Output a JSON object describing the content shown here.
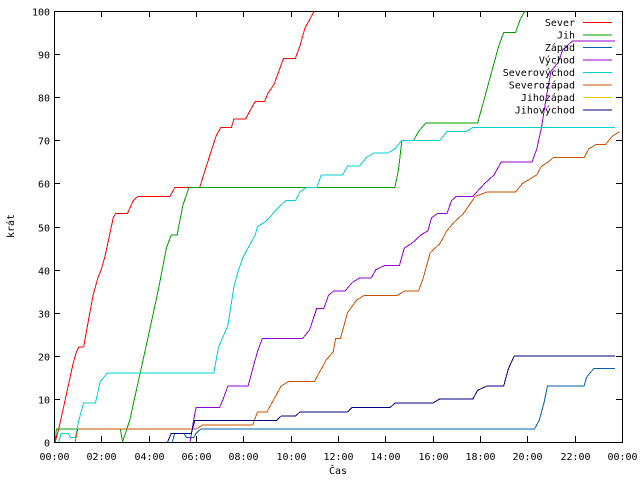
{
  "chart_data": {
    "type": "line",
    "title": "",
    "xlabel": "Čas",
    "ylabel": "krát",
    "xlim": [
      0,
      24
    ],
    "ylim": [
      0,
      100
    ],
    "x_unit": "hours",
    "grid": false,
    "legend_position": "top-right",
    "x_ticks": [
      {
        "value": 0,
        "label": "00:00"
      },
      {
        "value": 2,
        "label": "02:00"
      },
      {
        "value": 4,
        "label": "04:00"
      },
      {
        "value": 6,
        "label": "06:00"
      },
      {
        "value": 8,
        "label": "08:00"
      },
      {
        "value": 10,
        "label": "10:00"
      },
      {
        "value": 12,
        "label": "12:00"
      },
      {
        "value": 14,
        "label": "14:00"
      },
      {
        "value": 16,
        "label": "16:00"
      },
      {
        "value": 18,
        "label": "18:00"
      },
      {
        "value": 20,
        "label": "20:00"
      },
      {
        "value": 22,
        "label": "22:00"
      },
      {
        "value": 24,
        "label": "00:00"
      }
    ],
    "y_ticks": [
      {
        "value": 0,
        "label": "0"
      },
      {
        "value": 10,
        "label": "10"
      },
      {
        "value": 20,
        "label": "20"
      },
      {
        "value": 30,
        "label": "30"
      },
      {
        "value": 40,
        "label": "40"
      },
      {
        "value": 50,
        "label": "50"
      },
      {
        "value": 60,
        "label": "60"
      },
      {
        "value": 70,
        "label": "70"
      },
      {
        "value": 80,
        "label": "80"
      },
      {
        "value": 90,
        "label": "90"
      },
      {
        "value": 100,
        "label": "100"
      }
    ],
    "series": [
      {
        "name": "Sever",
        "color": "#ff0000",
        "points": [
          [
            0.05,
            0
          ],
          [
            0.2,
            3
          ],
          [
            0.4,
            8
          ],
          [
            0.6,
            13
          ],
          [
            0.8,
            18
          ],
          [
            0.95,
            21
          ],
          [
            1.05,
            22
          ],
          [
            1.25,
            22
          ],
          [
            1.45,
            28
          ],
          [
            1.65,
            34
          ],
          [
            1.85,
            38
          ],
          [
            2.0,
            40
          ],
          [
            2.15,
            43
          ],
          [
            2.35,
            48
          ],
          [
            2.5,
            52
          ],
          [
            2.6,
            53
          ],
          [
            3.1,
            53
          ],
          [
            3.35,
            56
          ],
          [
            3.55,
            57
          ],
          [
            4.9,
            57
          ],
          [
            5.1,
            59
          ],
          [
            6.15,
            59
          ],
          [
            6.5,
            65
          ],
          [
            6.85,
            71
          ],
          [
            7.05,
            73
          ],
          [
            7.5,
            73
          ],
          [
            7.6,
            75
          ],
          [
            8.1,
            75
          ],
          [
            8.3,
            77
          ],
          [
            8.5,
            79
          ],
          [
            8.9,
            79
          ],
          [
            9.05,
            81
          ],
          [
            9.3,
            83
          ],
          [
            9.5,
            86
          ],
          [
            9.7,
            89
          ],
          [
            10.2,
            89
          ],
          [
            10.4,
            92
          ],
          [
            10.6,
            96
          ],
          [
            10.8,
            98
          ],
          [
            11.0,
            100
          ]
        ]
      },
      {
        "name": "Jih",
        "color": "#00a000",
        "points": [
          [
            0.05,
            0
          ],
          [
            0.1,
            3
          ],
          [
            2.8,
            3
          ],
          [
            2.9,
            0
          ],
          [
            3.2,
            5
          ],
          [
            3.6,
            15
          ],
          [
            4.0,
            25
          ],
          [
            4.4,
            35
          ],
          [
            4.75,
            45
          ],
          [
            4.95,
            48
          ],
          [
            5.2,
            48
          ],
          [
            5.45,
            55
          ],
          [
            5.7,
            59
          ],
          [
            14.4,
            59
          ],
          [
            14.55,
            63
          ],
          [
            14.7,
            70
          ],
          [
            15.2,
            70
          ],
          [
            15.4,
            72
          ],
          [
            15.7,
            74
          ],
          [
            17.9,
            74
          ],
          [
            18.1,
            78
          ],
          [
            18.5,
            86
          ],
          [
            18.8,
            92
          ],
          [
            19.0,
            95
          ],
          [
            19.5,
            95
          ],
          [
            19.7,
            98
          ],
          [
            19.9,
            100
          ]
        ]
      },
      {
        "name": "Západ",
        "color": "#0060ad",
        "points": [
          [
            5.0,
            0
          ],
          [
            5.05,
            1
          ],
          [
            5.1,
            2
          ],
          [
            5.5,
            2
          ],
          [
            5.6,
            1
          ],
          [
            5.9,
            1
          ],
          [
            6.0,
            2
          ],
          [
            6.2,
            3
          ],
          [
            20.3,
            3
          ],
          [
            20.5,
            5
          ],
          [
            20.7,
            9
          ],
          [
            20.85,
            13
          ],
          [
            22.4,
            13
          ],
          [
            22.5,
            15
          ],
          [
            22.8,
            17
          ],
          [
            23.7,
            17
          ]
        ]
      },
      {
        "name": "Východ",
        "color": "#9400d3",
        "points": [
          [
            5.75,
            0
          ],
          [
            5.9,
            5
          ],
          [
            6.0,
            8
          ],
          [
            7.0,
            8
          ],
          [
            7.15,
            10
          ],
          [
            7.35,
            13
          ],
          [
            8.2,
            13
          ],
          [
            8.35,
            16
          ],
          [
            8.6,
            21
          ],
          [
            8.8,
            24
          ],
          [
            10.5,
            24
          ],
          [
            10.8,
            26
          ],
          [
            11.1,
            31
          ],
          [
            11.4,
            31
          ],
          [
            11.6,
            34
          ],
          [
            11.8,
            35
          ],
          [
            12.3,
            35
          ],
          [
            12.6,
            37
          ],
          [
            12.9,
            38
          ],
          [
            13.4,
            38
          ],
          [
            13.6,
            40
          ],
          [
            14.0,
            41
          ],
          [
            14.6,
            41
          ],
          [
            14.8,
            45
          ],
          [
            15.1,
            46
          ],
          [
            15.5,
            48
          ],
          [
            15.8,
            49
          ],
          [
            15.95,
            52
          ],
          [
            16.2,
            53
          ],
          [
            16.6,
            53
          ],
          [
            16.8,
            56
          ],
          [
            17.0,
            57
          ],
          [
            17.7,
            57
          ],
          [
            18.2,
            60
          ],
          [
            18.6,
            62
          ],
          [
            18.9,
            65
          ],
          [
            19.2,
            65
          ],
          [
            20.2,
            65
          ],
          [
            20.4,
            68
          ],
          [
            20.6,
            73
          ],
          [
            20.8,
            80
          ],
          [
            21.0,
            86
          ],
          [
            21.3,
            88
          ],
          [
            21.5,
            91
          ],
          [
            21.7,
            92
          ],
          [
            21.9,
            93
          ],
          [
            23.7,
            93
          ]
        ]
      },
      {
        "name": "Severovýchod",
        "color": "#00d0d0",
        "points": [
          [
            0.2,
            0
          ],
          [
            0.3,
            2
          ],
          [
            0.6,
            2
          ],
          [
            0.7,
            1
          ],
          [
            0.9,
            1
          ],
          [
            1.05,
            5
          ],
          [
            1.25,
            9
          ],
          [
            1.75,
            9
          ],
          [
            1.95,
            14
          ],
          [
            2.25,
            16
          ],
          [
            6.75,
            16
          ],
          [
            6.95,
            22
          ],
          [
            7.35,
            27
          ],
          [
            7.6,
            36
          ],
          [
            7.8,
            40
          ],
          [
            8.0,
            43
          ],
          [
            8.3,
            46
          ],
          [
            8.5,
            48
          ],
          [
            8.6,
            50
          ],
          [
            8.9,
            51
          ],
          [
            9.1,
            52
          ],
          [
            9.4,
            54
          ],
          [
            9.8,
            56
          ],
          [
            10.2,
            56
          ],
          [
            10.4,
            58
          ],
          [
            10.65,
            59
          ],
          [
            11.1,
            59
          ],
          [
            11.3,
            62
          ],
          [
            11.7,
            62
          ],
          [
            12.2,
            62
          ],
          [
            12.4,
            64
          ],
          [
            12.9,
            64
          ],
          [
            13.2,
            66
          ],
          [
            13.5,
            67
          ],
          [
            14.1,
            67
          ],
          [
            14.4,
            68
          ],
          [
            14.7,
            70
          ],
          [
            15.0,
            70
          ],
          [
            16.3,
            70
          ],
          [
            16.6,
            72
          ],
          [
            17.4,
            72
          ],
          [
            17.7,
            73
          ],
          [
            23.7,
            73
          ]
        ]
      },
      {
        "name": "Severozápad",
        "color": "#c85000",
        "points": [
          [
            0.9,
            0
          ],
          [
            1.0,
            3
          ],
          [
            6.0,
            3
          ],
          [
            6.3,
            4
          ],
          [
            8.4,
            4
          ],
          [
            8.6,
            7
          ],
          [
            9.0,
            7
          ],
          [
            9.3,
            10
          ],
          [
            9.6,
            13
          ],
          [
            9.9,
            14
          ],
          [
            11.0,
            14
          ],
          [
            11.2,
            16
          ],
          [
            11.5,
            19
          ],
          [
            11.8,
            21
          ],
          [
            11.9,
            24
          ],
          [
            12.1,
            24
          ],
          [
            12.4,
            30
          ],
          [
            12.8,
            33
          ],
          [
            13.1,
            34
          ],
          [
            14.5,
            34
          ],
          [
            14.8,
            35
          ],
          [
            15.4,
            35
          ],
          [
            15.6,
            38
          ],
          [
            15.9,
            44
          ],
          [
            16.3,
            46
          ],
          [
            16.6,
            49
          ],
          [
            16.9,
            51
          ],
          [
            17.3,
            53
          ],
          [
            17.8,
            57
          ],
          [
            18.3,
            58
          ],
          [
            19.5,
            58
          ],
          [
            19.8,
            60
          ],
          [
            20.1,
            61
          ],
          [
            20.4,
            62
          ],
          [
            20.6,
            64
          ],
          [
            20.9,
            65
          ],
          [
            21.1,
            66
          ],
          [
            22.4,
            66
          ],
          [
            22.6,
            68
          ],
          [
            22.9,
            69
          ],
          [
            23.3,
            69
          ],
          [
            23.6,
            71
          ],
          [
            23.9,
            72
          ]
        ]
      },
      {
        "name": "Jihozápad",
        "color": "#e6c800",
        "points": []
      },
      {
        "name": "Jihovýchod",
        "color": "#000080",
        "points": [
          [
            4.8,
            0
          ],
          [
            4.95,
            2
          ],
          [
            5.3,
            2
          ],
          [
            5.8,
            2
          ],
          [
            5.95,
            5
          ],
          [
            9.4,
            5
          ],
          [
            9.6,
            6
          ],
          [
            10.2,
            6
          ],
          [
            10.4,
            7
          ],
          [
            12.4,
            7
          ],
          [
            12.6,
            8
          ],
          [
            14.2,
            8
          ],
          [
            14.4,
            9
          ],
          [
            16.0,
            9
          ],
          [
            16.3,
            10
          ],
          [
            17.7,
            10
          ],
          [
            17.9,
            12
          ],
          [
            18.3,
            13
          ],
          [
            19.0,
            13
          ],
          [
            19.2,
            17
          ],
          [
            19.45,
            20
          ],
          [
            23.7,
            20
          ]
        ]
      }
    ]
  }
}
